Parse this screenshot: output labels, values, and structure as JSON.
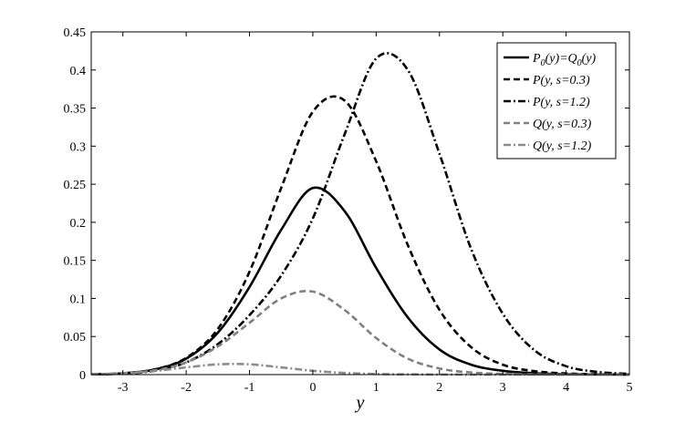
{
  "chart_data": {
    "type": "line",
    "title": "",
    "xlabel": "y",
    "ylabel": "",
    "xlim": [
      -3.5,
      5
    ],
    "ylim": [
      0,
      0.45
    ],
    "x_ticks": [
      "-3",
      "-2",
      "-1",
      "0",
      "1",
      "2",
      "3",
      "4",
      "5"
    ],
    "y_ticks": [
      "0",
      "0.05",
      "0.1",
      "0.15",
      "0.2",
      "0.25",
      "0.3",
      "0.35",
      "0.4",
      "0.45"
    ],
    "grid": false,
    "legend_position": "top-right",
    "x": [
      -3.5,
      -3,
      -2.5,
      -2,
      -1.5,
      -1,
      -0.5,
      0,
      0.5,
      1,
      1.5,
      2,
      2.5,
      3,
      3.5,
      4,
      4.5,
      5
    ],
    "series": [
      {
        "name": "P0(y)=Q0(y)",
        "legend_parts": [
          [
            "P",
            "n"
          ],
          [
            "0",
            "s"
          ],
          [
            "(y)=Q",
            "n"
          ],
          [
            "0",
            "s"
          ],
          [
            "(y)",
            "n"
          ]
        ],
        "color": "#000000",
        "style": "solid",
        "values": [
          0.0004,
          0.0018,
          0.0066,
          0.021,
          0.055,
          0.115,
          0.19,
          0.245,
          0.215,
          0.14,
          0.075,
          0.033,
          0.013,
          0.005,
          0.0018,
          0.0006,
          0.0002,
          0.0001
        ]
      },
      {
        "name": "P(y, s=0.3)",
        "legend_parts": [
          [
            "P(y, s=0.3)",
            "n"
          ]
        ],
        "color": "#000000",
        "style": "dashed",
        "values": [
          0.0004,
          0.0018,
          0.0068,
          0.022,
          0.06,
          0.135,
          0.245,
          0.345,
          0.36,
          0.28,
          0.17,
          0.085,
          0.036,
          0.013,
          0.0045,
          0.0015,
          0.0005,
          0.0002
        ]
      },
      {
        "name": "P(y, s=1.2)",
        "legend_parts": [
          [
            "P(y, s=1.2)",
            "n"
          ]
        ],
        "color": "#000000",
        "style": "dashdot",
        "values": [
          0.0003,
          0.0013,
          0.005,
          0.016,
          0.04,
          0.078,
          0.13,
          0.205,
          0.315,
          0.415,
          0.4,
          0.29,
          0.165,
          0.08,
          0.032,
          0.011,
          0.0035,
          0.001
        ]
      },
      {
        "name": "Q(y, s=0.3)",
        "legend_parts": [
          [
            "Q(y, s=0.3)",
            "n"
          ]
        ],
        "color": "#808080",
        "style": "dashed",
        "values": [
          0.0004,
          0.0016,
          0.0056,
          0.016,
          0.037,
          0.068,
          0.1,
          0.109,
          0.085,
          0.048,
          0.021,
          0.008,
          0.0028,
          0.0009,
          0.0003,
          0.0001,
          0.0,
          0.0
        ]
      },
      {
        "name": "Q(y, s=1.2)",
        "legend_parts": [
          [
            "Q(y, s=1.2)",
            "n"
          ]
        ],
        "color": "#8c8c8c",
        "style": "dashdot",
        "values": [
          0.0005,
          0.0017,
          0.0048,
          0.0095,
          0.0135,
          0.0135,
          0.0095,
          0.005,
          0.0022,
          0.0008,
          0.0003,
          0.0001,
          0.0,
          0.0,
          0.0,
          0.0,
          0.0,
          0.0
        ]
      }
    ]
  }
}
